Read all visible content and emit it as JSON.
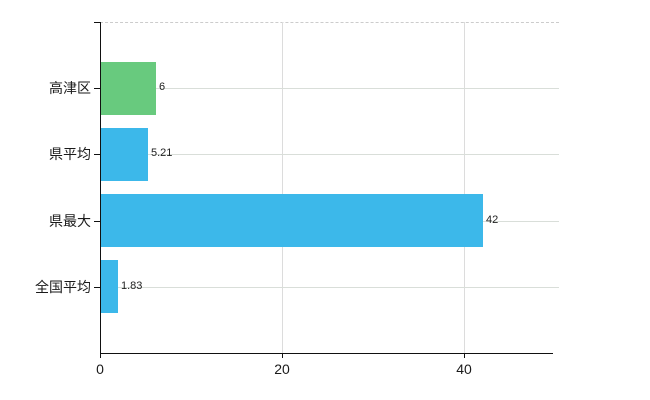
{
  "chart_data": {
    "type": "bar",
    "orientation": "horizontal",
    "title": "",
    "xlabel": "",
    "ylabel": "",
    "categories": [
      "高津区",
      "県平均",
      "県最大",
      "全国平均"
    ],
    "values": [
      6,
      5.21,
      42,
      1.83
    ],
    "value_labels": [
      "6",
      "5.21",
      "42",
      "1.83"
    ],
    "bar_colors": [
      "#68ca7e",
      "#3cb8ea",
      "#3cb8ea",
      "#3cb8ea"
    ],
    "x_ticks": [
      0,
      20,
      40
    ],
    "x_tick_labels": [
      "0",
      "20",
      "40"
    ],
    "xlim": [
      0,
      50
    ],
    "grid": true,
    "legend": "none",
    "colors": {
      "grid_horizontal": "#d9ded9",
      "grid_vertical": "#dcdcdc",
      "top_border_dashed": "#cccccc",
      "axis": "#111111",
      "background": "#ffffff",
      "label_text": "#1a1a1a",
      "value_text": "#222222"
    }
  }
}
